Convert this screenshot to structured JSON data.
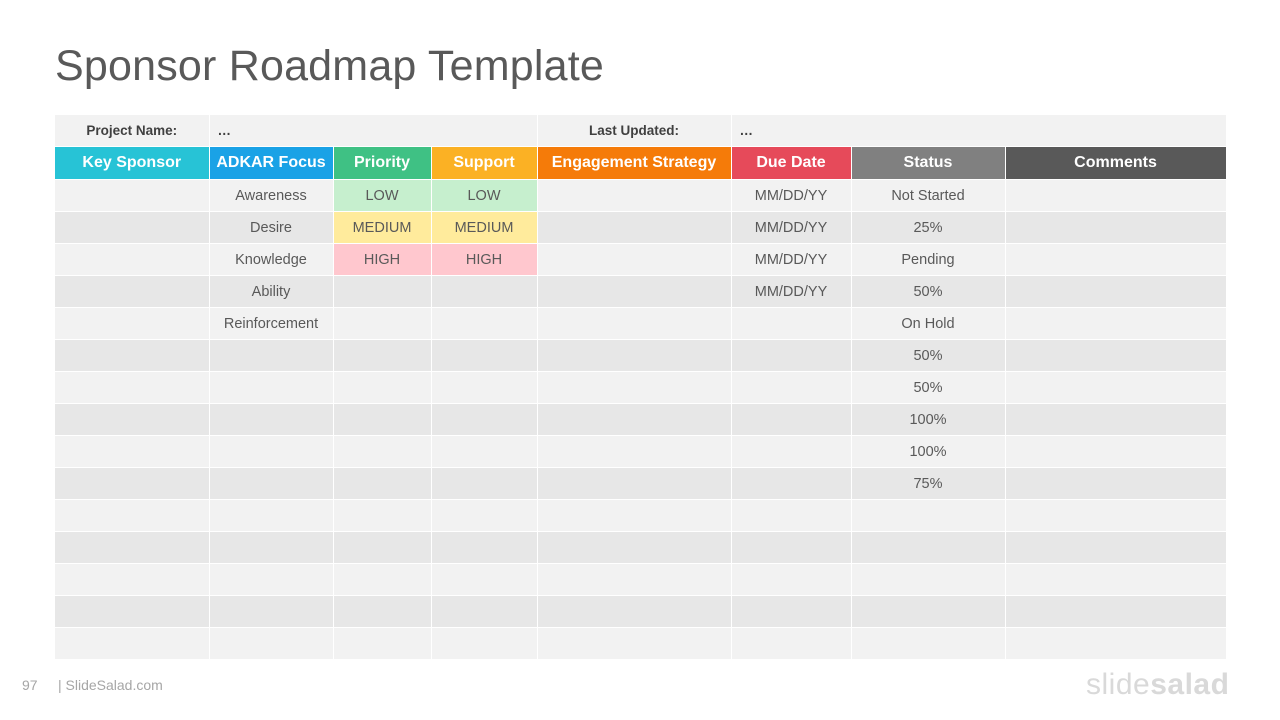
{
  "slide": {
    "title": "Sponsor Roadmap Template",
    "page_number": "97",
    "site": "| SlideSalad.com",
    "logo": {
      "part1": "slide",
      "part2": "salad"
    }
  },
  "meta": {
    "project_label": "Project Name:",
    "project_value": "…",
    "updated_label": "Last Updated:",
    "updated_value": "…"
  },
  "columns": [
    {
      "label": "Key Sponsor",
      "color": "#27c3d6"
    },
    {
      "label": "ADKAR Focus",
      "color": "#1aa2e6"
    },
    {
      "label": "Priority",
      "color": "#3fc184"
    },
    {
      "label": "Support",
      "color": "#fbb124"
    },
    {
      "label": "Engagement Strategy",
      "color": "#f57b09"
    },
    {
      "label": "Due Date",
      "color": "#e64a5a"
    },
    {
      "label": "Status",
      "color": "#808080"
    },
    {
      "label": "Comments",
      "color": "#595959"
    }
  ],
  "rows": [
    [
      "",
      "Awareness",
      "LOW",
      "LOW",
      "",
      "MM/DD/YY",
      "Not Started",
      ""
    ],
    [
      "",
      "Desire",
      "MEDIUM",
      "MEDIUM",
      "",
      "MM/DD/YY",
      "25%",
      ""
    ],
    [
      "",
      "Knowledge",
      "HIGH",
      "HIGH",
      "",
      "MM/DD/YY",
      "Pending",
      ""
    ],
    [
      "",
      "Ability",
      "",
      "",
      "",
      "MM/DD/YY",
      "50%",
      ""
    ],
    [
      "",
      "Reinforcement",
      "",
      "",
      "",
      "",
      "On Hold",
      ""
    ],
    [
      "",
      "",
      "",
      "",
      "",
      "",
      "50%",
      ""
    ],
    [
      "",
      "",
      "",
      "",
      "",
      "",
      "50%",
      ""
    ],
    [
      "",
      "",
      "",
      "",
      "",
      "",
      "100%",
      ""
    ],
    [
      "",
      "",
      "",
      "",
      "",
      "",
      "100%",
      ""
    ],
    [
      "",
      "",
      "",
      "",
      "",
      "",
      "75%",
      ""
    ],
    [
      "",
      "",
      "",
      "",
      "",
      "",
      "",
      ""
    ],
    [
      "",
      "",
      "",
      "",
      "",
      "",
      "",
      ""
    ],
    [
      "",
      "",
      "",
      "",
      "",
      "",
      "",
      ""
    ],
    [
      "",
      "",
      "",
      "",
      "",
      "",
      "",
      ""
    ],
    [
      "",
      "",
      "",
      "",
      "",
      "",
      "",
      ""
    ]
  ],
  "level_colors": {
    "LOW": "#c6efce",
    "MEDIUM": "#ffeb9c",
    "HIGH": "#ffc7ce"
  }
}
